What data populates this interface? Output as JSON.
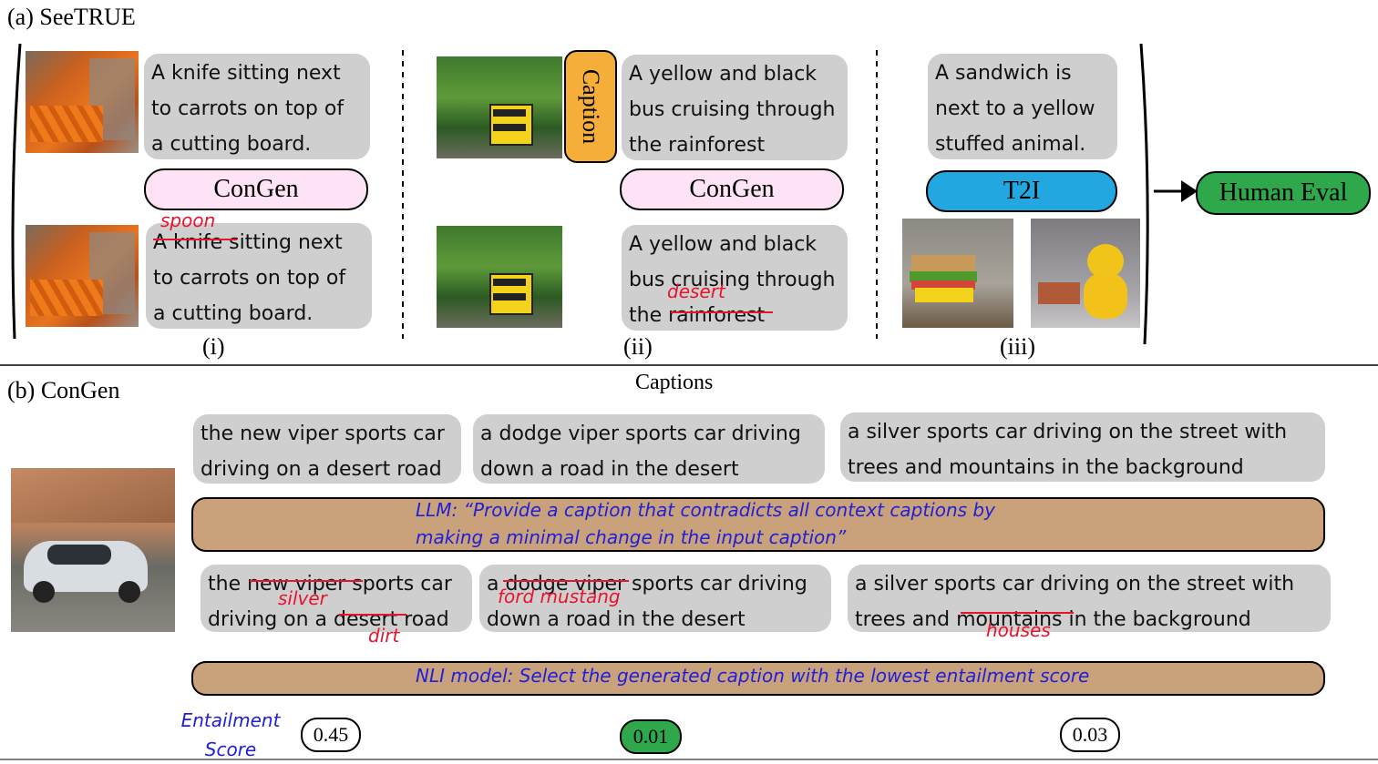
{
  "section_a": {
    "title": "(a) SeeTRUE",
    "panel_i": {
      "caption_top": [
        "A knife sitting next",
        "to carrots on top of",
        "a cutting board."
      ],
      "method": "ConGen",
      "caption_bottom": [
        "A knife sitting next",
        "to carrots on top of",
        "a cutting board."
      ],
      "edit": "spoon",
      "label": "(i)"
    },
    "panel_ii": {
      "side_tag": "Caption",
      "caption_top": [
        "A yellow and black",
        "bus cruising through",
        "the rainforest"
      ],
      "method": "ConGen",
      "caption_bottom": [
        "A yellow and black",
        "bus cruising through",
        "the rainforest"
      ],
      "edit": "desert",
      "label": "(ii)"
    },
    "panel_iii": {
      "caption_top": [
        "A sandwich is",
        "next to a yellow",
        "stuffed animal."
      ],
      "method": "T2I",
      "label": "(iii)"
    },
    "output": "Human Eval"
  },
  "section_b": {
    "title": "(b) ConGen",
    "captions_heading": "Captions",
    "context_captions": [
      [
        "the new viper sports car",
        "driving on a desert road"
      ],
      [
        "a dodge viper sports car driving",
        "down a road in the desert"
      ],
      [
        "a silver sports car driving on the street with",
        "trees and mountains in the background"
      ]
    ],
    "llm_prompt": [
      "LLM: “Provide a caption that contradicts all context captions by",
      "making a minimal change in the input caption”"
    ],
    "generated_captions": [
      [
        "the new viper sports car",
        "driving on a desert road"
      ],
      [
        "a dodge viper sports car driving",
        "down a road in the desert"
      ],
      [
        "a silver sports car driving on the street with",
        "trees and mountains in the background"
      ]
    ],
    "edits": {
      "silver": "silver",
      "dirt": "dirt",
      "ford_mustang": "ford mustang",
      "houses": "houses"
    },
    "nli_prompt": "NLI model: Select the generated caption with the lowest entailment score",
    "entailment_label": [
      "Entailment",
      "Score"
    ],
    "scores": [
      "0.45",
      "0.01",
      "0.03"
    ],
    "colors": {
      "highlight": "#2ea84a",
      "prompt_bg": "#c9a27b",
      "prompt_text": "#2020d8",
      "edit": "#e8142d",
      "congen_bg": "#fde3f5",
      "t2i_bg": "#22a7e0",
      "caption_tag_bg": "#f6ae3a"
    }
  }
}
